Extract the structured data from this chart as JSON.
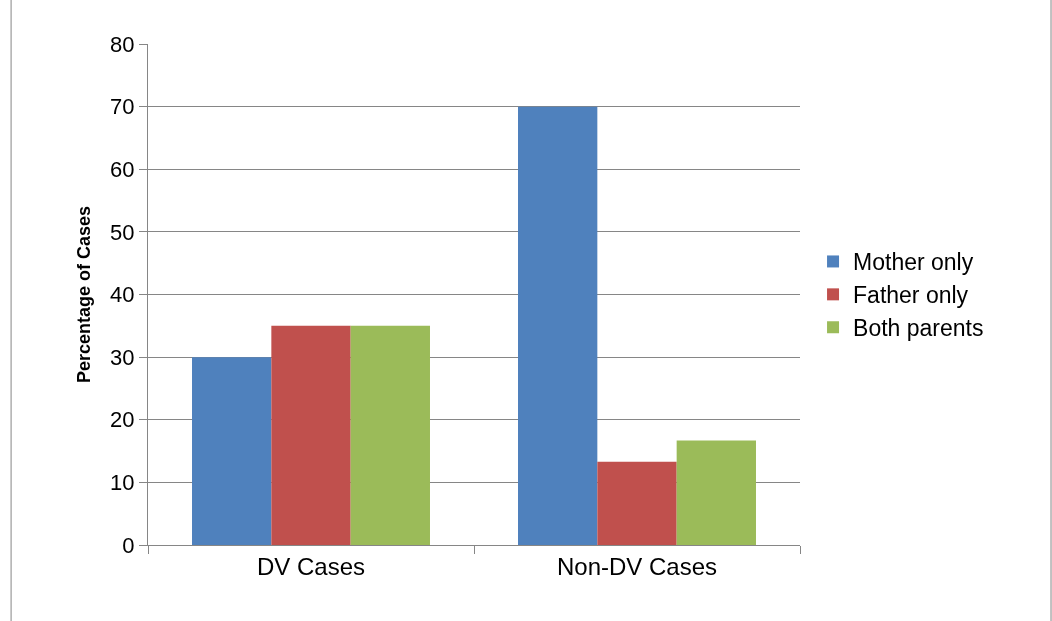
{
  "chart_data": {
    "type": "bar",
    "ylabel": "Percentage of Cases",
    "categories": [
      "DV Cases",
      "Non-DV Cases"
    ],
    "series": [
      {
        "name": "Mother only",
        "color": "#4f81bd",
        "values": [
          30,
          70
        ]
      },
      {
        "name": "Father only",
        "color": "#c0504d",
        "values": [
          35,
          13.3
        ]
      },
      {
        "name": "Both parents",
        "color": "#9bbb59",
        "values": [
          35,
          16.7
        ]
      }
    ],
    "ylim": [
      0,
      80
    ],
    "yticks": [
      0,
      10,
      20,
      30,
      40,
      50,
      60,
      70,
      80
    ],
    "grid": "y",
    "legend": "right"
  }
}
